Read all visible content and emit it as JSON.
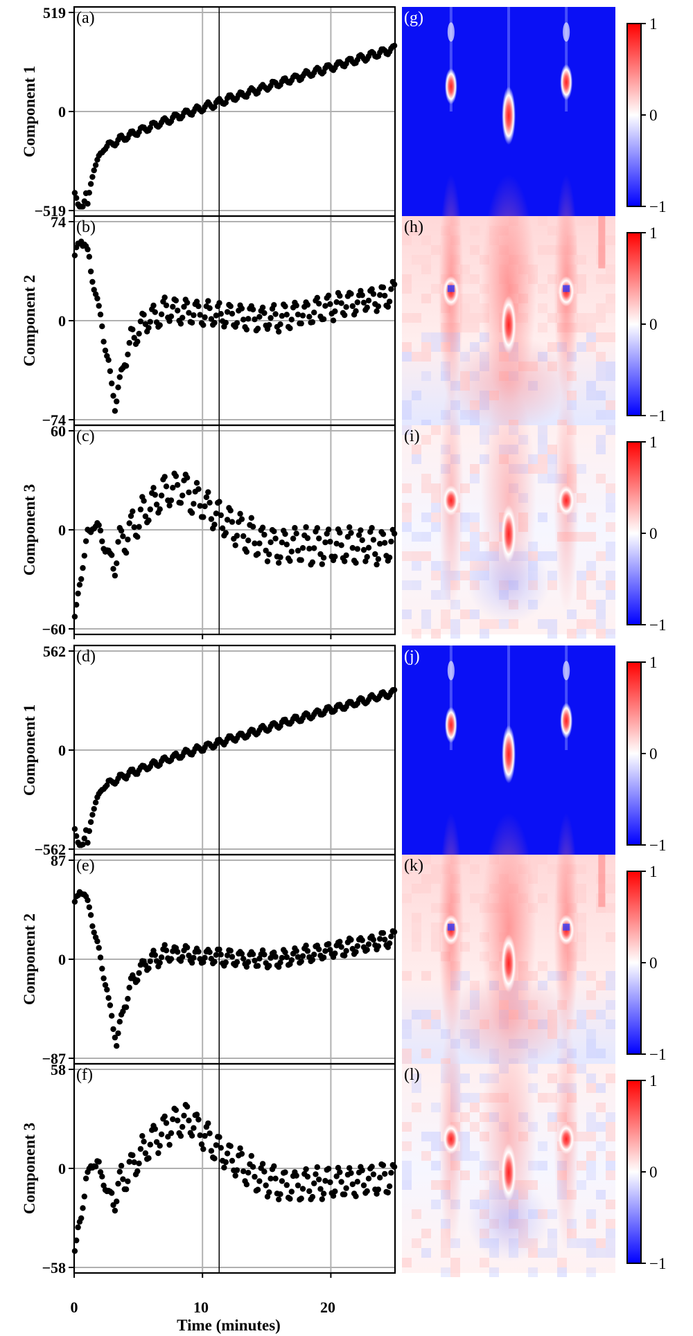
{
  "figure": {
    "xlabel": "Time (minutes)",
    "x_ticks": [
      0,
      10,
      20
    ],
    "x_range": [
      0,
      25
    ],
    "x_tick_labels": [
      "0",
      "10",
      "20"
    ],
    "vertical_marker_x": 11.3
  },
  "chart_data": [
    {
      "type": "scatter",
      "panel_label": "(a)",
      "ylabel": "Component 1",
      "ylim": [
        -519,
        519
      ],
      "ytick_labels": [
        "519",
        "0",
        "−519"
      ],
      "grid": true,
      "curve": {
        "kind": "comp1",
        "start": -410,
        "low": -519,
        "plateau": -170,
        "end": 330,
        "osc_amp": 18
      }
    },
    {
      "type": "scatter",
      "panel_label": "(b)",
      "ylabel": "Component 2",
      "ylim": [
        -74,
        74
      ],
      "ytick_labels": [
        "74",
        "0",
        "−74"
      ],
      "grid": true,
      "curve": {
        "kind": "comp2",
        "start": 45,
        "peak": 62,
        "min": -65,
        "min_t": 3.2,
        "settle": 8,
        "end": 20,
        "osc_amp": 9
      }
    },
    {
      "type": "scatter",
      "panel_label": "(c)",
      "ylabel": "Component 3",
      "ylim": [
        -60,
        60
      ],
      "ytick_labels": [
        "60",
        "0",
        "−60"
      ],
      "grid": true,
      "curve": {
        "kind": "comp3",
        "start": -57,
        "peak": 25,
        "peak_t": 8.5,
        "end": -10,
        "osc_amp": 10
      }
    },
    {
      "type": "scatter",
      "panel_label": "(d)",
      "ylabel": "Component 1",
      "ylim": [
        -562,
        562
      ],
      "ytick_labels": [
        "562",
        "0",
        "−562"
      ],
      "grid": true,
      "curve": {
        "kind": "comp1",
        "start": -430,
        "low": -562,
        "plateau": -180,
        "end": 330,
        "osc_amp": 18
      }
    },
    {
      "type": "scatter",
      "panel_label": "(e)",
      "ylabel": "Component 2",
      "ylim": [
        -87,
        87
      ],
      "ytick_labels": [
        "87",
        "0",
        "−87"
      ],
      "grid": true,
      "curve": {
        "kind": "comp2",
        "start": 48,
        "peak": 62,
        "min": -75,
        "min_t": 3.3,
        "settle": 6,
        "end": 18,
        "osc_amp": 7
      }
    },
    {
      "type": "scatter",
      "panel_label": "(f)",
      "ylabel": "Component 3",
      "ylim": [
        -58,
        58
      ],
      "ytick_labels": [
        "58",
        "0",
        "−58"
      ],
      "grid": true,
      "curve": {
        "kind": "comp3",
        "start": -52,
        "peak": 28,
        "peak_t": 9,
        "end": -6,
        "osc_amp": 9
      }
    }
  ],
  "heatmaps": [
    {
      "panel_label": "(g)",
      "style": "blue"
    },
    {
      "panel_label": "(h)",
      "style": "red"
    },
    {
      "panel_label": "(i)",
      "style": "mixed"
    },
    {
      "panel_label": "(j)",
      "style": "blue"
    },
    {
      "panel_label": "(k)",
      "style": "red"
    },
    {
      "panel_label": "(l)",
      "style": "mixed"
    }
  ],
  "colorbar": {
    "tick_labels": [
      "1",
      "0",
      "−1"
    ],
    "range": [
      -1,
      1
    ],
    "low_color": "#0000ff",
    "mid_color": "#ffffff",
    "high_color": "#ff0000"
  },
  "colors": {
    "points": "#000000",
    "grid": "#b0b0b0",
    "axis": "#000000"
  }
}
